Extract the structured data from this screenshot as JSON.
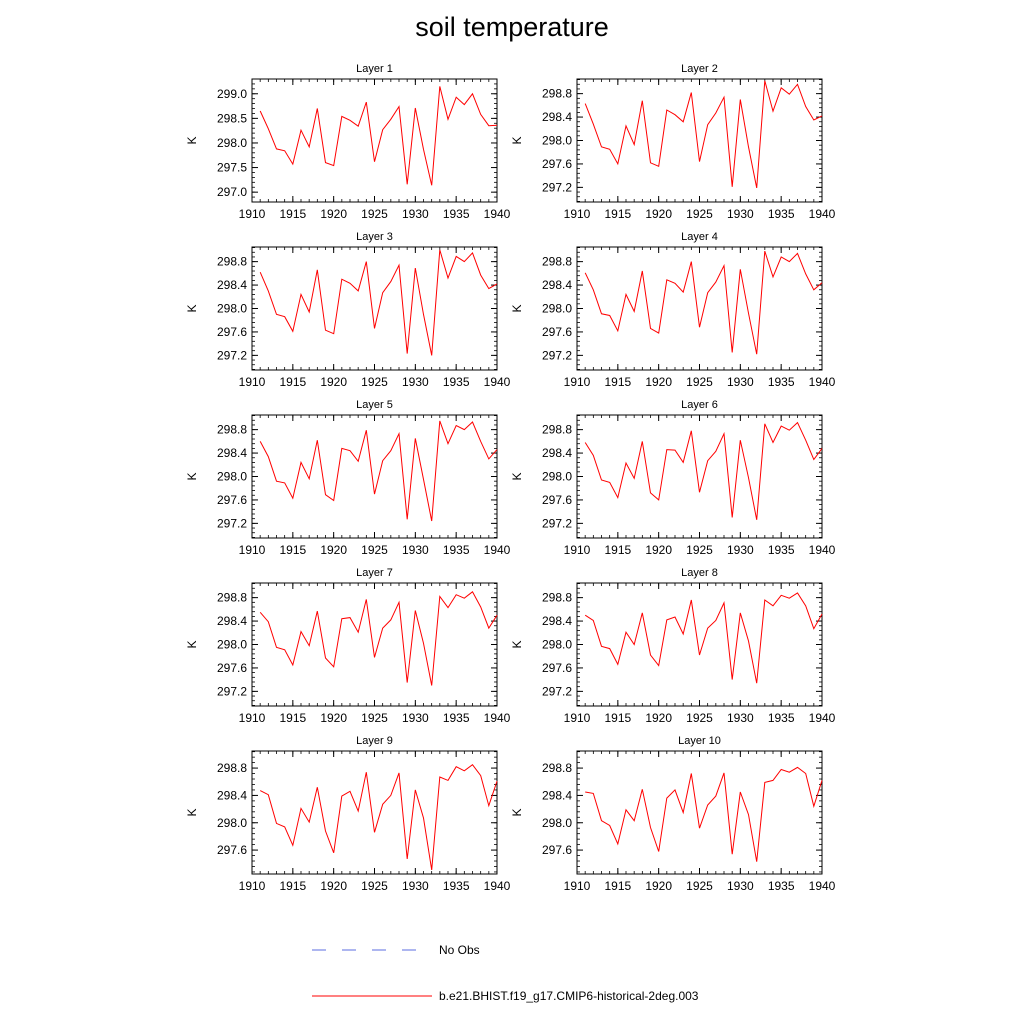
{
  "title": "soil temperature",
  "legend": {
    "items": [
      {
        "label": "No Obs",
        "color": "#5b6ee1",
        "style": "dashed"
      },
      {
        "label": "b.e21.BHIST.f19_g17.CMIP6-historical-2deg.003",
        "color": "#ff0000",
        "style": "solid"
      }
    ]
  },
  "chart_data": [
    {
      "type": "line",
      "title": "Layer 1",
      "ylabel": "K",
      "xlim": [
        1910,
        1940
      ],
      "ylim": [
        296.8,
        299.3
      ],
      "xticks": [
        1910,
        1915,
        1920,
        1925,
        1930,
        1935,
        1940
      ],
      "xtick_labels": [
        "1910",
        "1915",
        "1920",
        "1925",
        "1930",
        "1935",
        "1940"
      ],
      "yticks": [
        297.0,
        297.5,
        298.0,
        298.5,
        299.0
      ],
      "ytick_labels": [
        "297.0",
        "297.5",
        "298.0",
        "298.5",
        "299.0"
      ],
      "x": [
        1911,
        1912,
        1913,
        1914,
        1915,
        1916,
        1917,
        1918,
        1919,
        1920,
        1921,
        1922,
        1923,
        1924,
        1925,
        1926,
        1927,
        1928,
        1929,
        1930,
        1931,
        1932,
        1933,
        1934,
        1935,
        1936,
        1937,
        1938,
        1939,
        1940
      ],
      "series": [
        {
          "name": "b.e21.BHIST.f19_g17.CMIP6-historical-2deg.003",
          "color": "#ff0000",
          "values": [
            298.65,
            298.29,
            297.88,
            297.84,
            297.57,
            298.26,
            297.92,
            298.7,
            297.6,
            297.54,
            298.54,
            298.46,
            298.34,
            298.83,
            297.62,
            298.27,
            298.48,
            298.74,
            297.16,
            298.71,
            297.87,
            297.14,
            299.15,
            298.48,
            298.93,
            298.78,
            299.0,
            298.58,
            298.35,
            298.36
          ]
        }
      ]
    },
    {
      "type": "line",
      "title": "Layer 2",
      "ylabel": "K",
      "xlim": [
        1910,
        1940
      ],
      "ylim": [
        296.95,
        299.05
      ],
      "xticks": [
        1910,
        1915,
        1920,
        1925,
        1930,
        1935,
        1940
      ],
      "xtick_labels": [
        "1910",
        "1915",
        "1920",
        "1925",
        "1930",
        "1935",
        "1940"
      ],
      "yticks": [
        297.2,
        297.6,
        298.0,
        298.4,
        298.8
      ],
      "ytick_labels": [
        "297.2",
        "297.6",
        "298.0",
        "298.4",
        "298.8"
      ],
      "x": [
        1911,
        1912,
        1913,
        1914,
        1915,
        1916,
        1917,
        1918,
        1919,
        1920,
        1921,
        1922,
        1923,
        1924,
        1925,
        1926,
        1927,
        1928,
        1929,
        1930,
        1931,
        1932,
        1933,
        1934,
        1935,
        1936,
        1937,
        1938,
        1939,
        1940
      ],
      "series": [
        {
          "name": "b.e21.BHIST.f19_g17.CMIP6-historical-2deg.003",
          "color": "#ff0000",
          "values": [
            298.63,
            298.28,
            297.89,
            297.85,
            297.6,
            298.25,
            297.93,
            298.68,
            297.62,
            297.56,
            298.52,
            298.44,
            298.32,
            298.82,
            297.64,
            298.27,
            298.47,
            298.74,
            297.21,
            298.7,
            297.89,
            297.19,
            299.02,
            298.5,
            298.9,
            298.79,
            298.96,
            298.58,
            298.35,
            298.42
          ]
        }
      ]
    },
    {
      "type": "line",
      "title": "Layer 3",
      "ylabel": "K",
      "xlim": [
        1910,
        1940
      ],
      "ylim": [
        296.95,
        299.05
      ],
      "xticks": [
        1910,
        1915,
        1920,
        1925,
        1930,
        1935,
        1940
      ],
      "xtick_labels": [
        "1910",
        "1915",
        "1920",
        "1925",
        "1930",
        "1935",
        "1940"
      ],
      "yticks": [
        297.2,
        297.6,
        298.0,
        298.4,
        298.8
      ],
      "ytick_labels": [
        "297.2",
        "297.6",
        "298.0",
        "298.4",
        "298.8"
      ],
      "x": [
        1911,
        1912,
        1913,
        1914,
        1915,
        1916,
        1917,
        1918,
        1919,
        1920,
        1921,
        1922,
        1923,
        1924,
        1925,
        1926,
        1927,
        1928,
        1929,
        1930,
        1931,
        1932,
        1933,
        1934,
        1935,
        1936,
        1937,
        1938,
        1939,
        1940
      ],
      "series": [
        {
          "name": "b.e21.BHIST.f19_g17.CMIP6-historical-2deg.003",
          "color": "#ff0000",
          "values": [
            298.62,
            298.3,
            297.9,
            297.86,
            297.61,
            298.24,
            297.94,
            298.66,
            297.63,
            297.57,
            298.5,
            298.43,
            298.3,
            298.8,
            297.66,
            298.27,
            298.46,
            298.74,
            297.23,
            298.69,
            297.9,
            297.2,
            299.0,
            298.52,
            298.89,
            298.8,
            298.95,
            298.57,
            298.34,
            298.42
          ]
        }
      ]
    },
    {
      "type": "line",
      "title": "Layer 4",
      "ylabel": "K",
      "xlim": [
        1910,
        1940
      ],
      "ylim": [
        296.95,
        299.05
      ],
      "xticks": [
        1910,
        1915,
        1920,
        1925,
        1930,
        1935,
        1940
      ],
      "xtick_labels": [
        "1910",
        "1915",
        "1920",
        "1925",
        "1930",
        "1935",
        "1940"
      ],
      "yticks": [
        297.2,
        297.6,
        298.0,
        298.4,
        298.8
      ],
      "ytick_labels": [
        "297.2",
        "297.6",
        "298.0",
        "298.4",
        "298.8"
      ],
      "x": [
        1911,
        1912,
        1913,
        1914,
        1915,
        1916,
        1917,
        1918,
        1919,
        1920,
        1921,
        1922,
        1923,
        1924,
        1925,
        1926,
        1927,
        1928,
        1929,
        1930,
        1931,
        1932,
        1933,
        1934,
        1935,
        1936,
        1937,
        1938,
        1939,
        1940
      ],
      "series": [
        {
          "name": "b.e21.BHIST.f19_g17.CMIP6-historical-2deg.003",
          "color": "#ff0000",
          "values": [
            298.61,
            298.32,
            297.91,
            297.88,
            297.62,
            298.24,
            297.95,
            298.64,
            297.66,
            297.58,
            298.49,
            298.43,
            298.28,
            298.8,
            297.68,
            298.27,
            298.45,
            298.73,
            297.25,
            298.67,
            297.92,
            297.22,
            298.98,
            298.54,
            298.88,
            298.8,
            298.94,
            298.59,
            298.32,
            298.44
          ]
        }
      ]
    },
    {
      "type": "line",
      "title": "Layer 5",
      "ylabel": "K",
      "xlim": [
        1910,
        1940
      ],
      "ylim": [
        296.95,
        299.05
      ],
      "xticks": [
        1910,
        1915,
        1920,
        1925,
        1930,
        1935,
        1940
      ],
      "xtick_labels": [
        "1910",
        "1915",
        "1920",
        "1925",
        "1930",
        "1935",
        "1940"
      ],
      "yticks": [
        297.2,
        297.6,
        298.0,
        298.4,
        298.8
      ],
      "ytick_labels": [
        "297.2",
        "297.6",
        "298.0",
        "298.4",
        "298.8"
      ],
      "x": [
        1911,
        1912,
        1913,
        1914,
        1915,
        1916,
        1917,
        1918,
        1919,
        1920,
        1921,
        1922,
        1923,
        1924,
        1925,
        1926,
        1927,
        1928,
        1929,
        1930,
        1931,
        1932,
        1933,
        1934,
        1935,
        1936,
        1937,
        1938,
        1939,
        1940
      ],
      "series": [
        {
          "name": "b.e21.BHIST.f19_g17.CMIP6-historical-2deg.003",
          "color": "#ff0000",
          "values": [
            298.6,
            298.34,
            297.92,
            297.89,
            297.63,
            298.24,
            297.96,
            298.62,
            297.69,
            297.59,
            298.48,
            298.44,
            298.26,
            298.79,
            297.7,
            298.27,
            298.44,
            298.73,
            297.27,
            298.65,
            297.95,
            297.24,
            298.95,
            298.56,
            298.87,
            298.8,
            298.93,
            298.6,
            298.3,
            298.46
          ]
        }
      ]
    },
    {
      "type": "line",
      "title": "Layer 6",
      "ylabel": "K",
      "xlim": [
        1910,
        1940
      ],
      "ylim": [
        296.95,
        299.05
      ],
      "xticks": [
        1910,
        1915,
        1920,
        1925,
        1930,
        1935,
        1940
      ],
      "xtick_labels": [
        "1910",
        "1915",
        "1920",
        "1925",
        "1930",
        "1935",
        "1940"
      ],
      "yticks": [
        297.2,
        297.6,
        298.0,
        298.4,
        298.8
      ],
      "ytick_labels": [
        "297.2",
        "297.6",
        "298.0",
        "298.4",
        "298.8"
      ],
      "x": [
        1911,
        1912,
        1913,
        1914,
        1915,
        1916,
        1917,
        1918,
        1919,
        1920,
        1921,
        1922,
        1923,
        1924,
        1925,
        1926,
        1927,
        1928,
        1929,
        1930,
        1931,
        1932,
        1933,
        1934,
        1935,
        1936,
        1937,
        1938,
        1939,
        1940
      ],
      "series": [
        {
          "name": "b.e21.BHIST.f19_g17.CMIP6-historical-2deg.003",
          "color": "#ff0000",
          "values": [
            298.58,
            298.36,
            297.94,
            297.9,
            297.64,
            298.23,
            297.97,
            298.6,
            297.72,
            297.6,
            298.46,
            298.45,
            298.24,
            298.78,
            297.73,
            298.27,
            298.43,
            298.73,
            297.3,
            298.62,
            297.98,
            297.26,
            298.9,
            298.58,
            298.86,
            298.79,
            298.92,
            298.62,
            298.29,
            298.48
          ]
        }
      ]
    },
    {
      "type": "line",
      "title": "Layer 7",
      "ylabel": "K",
      "xlim": [
        1910,
        1940
      ],
      "ylim": [
        296.95,
        299.05
      ],
      "xticks": [
        1910,
        1915,
        1920,
        1925,
        1930,
        1935,
        1940
      ],
      "xtick_labels": [
        "1910",
        "1915",
        "1920",
        "1925",
        "1930",
        "1935",
        "1940"
      ],
      "yticks": [
        297.2,
        297.6,
        298.0,
        298.4,
        298.8
      ],
      "ytick_labels": [
        "297.2",
        "297.6",
        "298.0",
        "298.4",
        "298.8"
      ],
      "x": [
        1911,
        1912,
        1913,
        1914,
        1915,
        1916,
        1917,
        1918,
        1919,
        1920,
        1921,
        1922,
        1923,
        1924,
        1925,
        1926,
        1927,
        1928,
        1929,
        1930,
        1931,
        1932,
        1933,
        1934,
        1935,
        1936,
        1937,
        1938,
        1939,
        1940
      ],
      "series": [
        {
          "name": "b.e21.BHIST.f19_g17.CMIP6-historical-2deg.003",
          "color": "#ff0000",
          "values": [
            298.55,
            298.39,
            297.95,
            297.91,
            297.65,
            298.22,
            297.98,
            298.57,
            297.77,
            297.62,
            298.44,
            298.46,
            298.21,
            298.77,
            297.78,
            298.28,
            298.42,
            298.72,
            297.35,
            298.58,
            298.02,
            297.3,
            298.82,
            298.63,
            298.85,
            298.79,
            298.9,
            298.64,
            298.28,
            298.5
          ]
        }
      ]
    },
    {
      "type": "line",
      "title": "Layer 8",
      "ylabel": "K",
      "xlim": [
        1910,
        1940
      ],
      "ylim": [
        296.95,
        299.05
      ],
      "xticks": [
        1910,
        1915,
        1920,
        1925,
        1930,
        1935,
        1940
      ],
      "xtick_labels": [
        "1910",
        "1915",
        "1920",
        "1925",
        "1930",
        "1935",
        "1940"
      ],
      "yticks": [
        297.2,
        297.6,
        298.0,
        298.4,
        298.8
      ],
      "ytick_labels": [
        "297.2",
        "297.6",
        "298.0",
        "298.4",
        "298.8"
      ],
      "x": [
        1911,
        1912,
        1913,
        1914,
        1915,
        1916,
        1917,
        1918,
        1919,
        1920,
        1921,
        1922,
        1923,
        1924,
        1925,
        1926,
        1927,
        1928,
        1929,
        1930,
        1931,
        1932,
        1933,
        1934,
        1935,
        1936,
        1937,
        1938,
        1939,
        1940
      ],
      "series": [
        {
          "name": "b.e21.BHIST.f19_g17.CMIP6-historical-2deg.003",
          "color": "#ff0000",
          "values": [
            298.5,
            298.41,
            297.97,
            297.93,
            297.66,
            298.21,
            298.0,
            298.54,
            297.82,
            297.64,
            298.42,
            298.47,
            298.18,
            298.76,
            297.82,
            298.28,
            298.41,
            298.71,
            297.4,
            298.54,
            298.06,
            297.34,
            298.76,
            298.66,
            298.84,
            298.79,
            298.88,
            298.66,
            298.27,
            298.52
          ]
        }
      ]
    },
    {
      "type": "line",
      "title": "Layer 9",
      "ylabel": "K",
      "xlim": [
        1910,
        1940
      ],
      "ylim": [
        297.25,
        299.05
      ],
      "xticks": [
        1910,
        1915,
        1920,
        1925,
        1930,
        1935,
        1940
      ],
      "xtick_labels": [
        "1910",
        "1915",
        "1920",
        "1925",
        "1930",
        "1935",
        "1940"
      ],
      "yticks": [
        297.6,
        298.0,
        298.4,
        298.8
      ],
      "ytick_labels": [
        "297.6",
        "298.0",
        "298.4",
        "298.8"
      ],
      "x": [
        1911,
        1912,
        1913,
        1914,
        1915,
        1916,
        1917,
        1918,
        1919,
        1920,
        1921,
        1922,
        1923,
        1924,
        1925,
        1926,
        1927,
        1928,
        1929,
        1930,
        1931,
        1932,
        1933,
        1934,
        1935,
        1936,
        1937,
        1938,
        1939,
        1940
      ],
      "series": [
        {
          "name": "b.e21.BHIST.f19_g17.CMIP6-historical-2deg.003",
          "color": "#ff0000",
          "values": [
            298.47,
            298.41,
            297.99,
            297.94,
            297.67,
            298.21,
            298.01,
            298.52,
            297.88,
            297.56,
            298.39,
            298.46,
            298.17,
            298.74,
            297.86,
            298.27,
            298.4,
            298.73,
            297.47,
            298.48,
            298.07,
            297.31,
            298.67,
            298.62,
            298.82,
            298.76,
            298.85,
            298.69,
            298.25,
            298.61
          ]
        }
      ]
    },
    {
      "type": "line",
      "title": "Layer 10",
      "ylabel": "K",
      "xlim": [
        1910,
        1940
      ],
      "ylim": [
        297.25,
        299.05
      ],
      "xticks": [
        1910,
        1915,
        1920,
        1925,
        1930,
        1935,
        1940
      ],
      "xtick_labels": [
        "1910",
        "1915",
        "1920",
        "1925",
        "1930",
        "1935",
        "1940"
      ],
      "yticks": [
        297.6,
        298.0,
        298.4,
        298.8
      ],
      "ytick_labels": [
        "297.6",
        "298.0",
        "298.4",
        "298.8"
      ],
      "x": [
        1911,
        1912,
        1913,
        1914,
        1915,
        1916,
        1917,
        1918,
        1919,
        1920,
        1921,
        1922,
        1923,
        1924,
        1925,
        1926,
        1927,
        1928,
        1929,
        1930,
        1931,
        1932,
        1933,
        1934,
        1935,
        1936,
        1937,
        1938,
        1939,
        1940
      ],
      "series": [
        {
          "name": "b.e21.BHIST.f19_g17.CMIP6-historical-2deg.003",
          "color": "#ff0000",
          "values": [
            298.45,
            298.43,
            298.03,
            297.96,
            297.69,
            298.19,
            298.03,
            298.49,
            297.93,
            297.58,
            298.36,
            298.48,
            298.15,
            298.72,
            297.92,
            298.26,
            298.39,
            298.73,
            297.54,
            298.45,
            298.12,
            297.43,
            298.59,
            298.62,
            298.78,
            298.74,
            298.81,
            298.72,
            298.24,
            298.62
          ]
        }
      ]
    }
  ]
}
